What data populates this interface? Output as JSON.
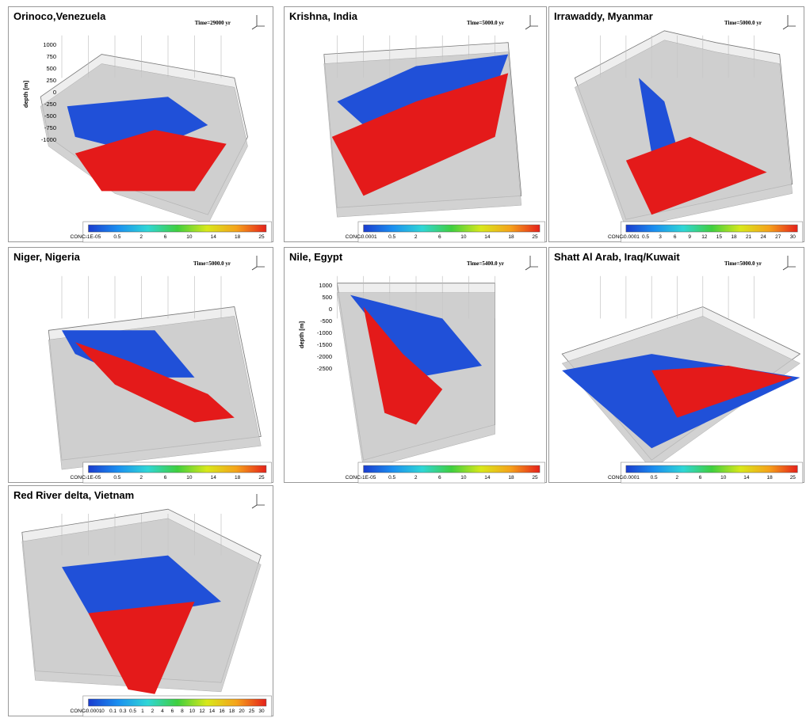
{
  "panels": [
    {
      "title": "Orinoco,Venezuela",
      "time": "Time=29000 yr",
      "conc_label": "CONC:",
      "colorbar_labels": [
        "-1E-05",
        "0.5",
        "2",
        "6",
        "10",
        "14",
        "18",
        "25"
      ],
      "axis_label": "depth [m]",
      "axis_ticks": [
        1000,
        750,
        500,
        250,
        0,
        -250,
        -500,
        -750,
        -1000
      ]
    },
    {
      "title": "Krishna, India",
      "time": "Time=5000.0 yr",
      "conc_label": "CONC:",
      "colorbar_labels": [
        "-0.0001",
        "0.5",
        "2",
        "6",
        "10",
        "14",
        "18",
        "25"
      ]
    },
    {
      "title": "Irrawaddy, Myanmar",
      "time": "Time=5000.0 yr",
      "conc_label": "CONC:",
      "colorbar_labels": [
        "-0.0001",
        "0.5",
        "3",
        "6",
        "9",
        "12",
        "15",
        "18",
        "21",
        "24",
        "27",
        "30"
      ]
    },
    {
      "title": "Niger, Nigeria",
      "time": "Time=5000.0 yr",
      "conc_label": "CONC:",
      "colorbar_labels": [
        "-1E-05",
        "0.5",
        "2",
        "6",
        "10",
        "14",
        "18",
        "25"
      ]
    },
    {
      "title": "Nile, Egypt",
      "time": "Time=5400.0 yr",
      "conc_label": "CONC:",
      "colorbar_labels": [
        "-1E-05",
        "0.5",
        "2",
        "6",
        "10",
        "14",
        "18",
        "25"
      ],
      "axis_label": "depth [m]",
      "axis_ticks": [
        1000,
        500,
        0,
        -500,
        -1000,
        -1500,
        -2000,
        -2500
      ]
    },
    {
      "title": "Shatt Al Arab, Iraq/Kuwait",
      "time": "Time=5000.0 yr",
      "conc_label": "CONC:",
      "colorbar_labels": [
        "-0.0001",
        "0.5",
        "2",
        "6",
        "10",
        "14",
        "18",
        "25"
      ]
    },
    {
      "title": "Red River delta, Vietnam",
      "conc_label": "CONC:",
      "colorbar_labels": [
        "-0.0001",
        "0",
        "0.1",
        "0.3",
        "0.5",
        "1",
        "2",
        "4",
        "6",
        "8",
        "10",
        "12",
        "14",
        "16",
        "18",
        "20",
        "25",
        "30"
      ]
    }
  ]
}
